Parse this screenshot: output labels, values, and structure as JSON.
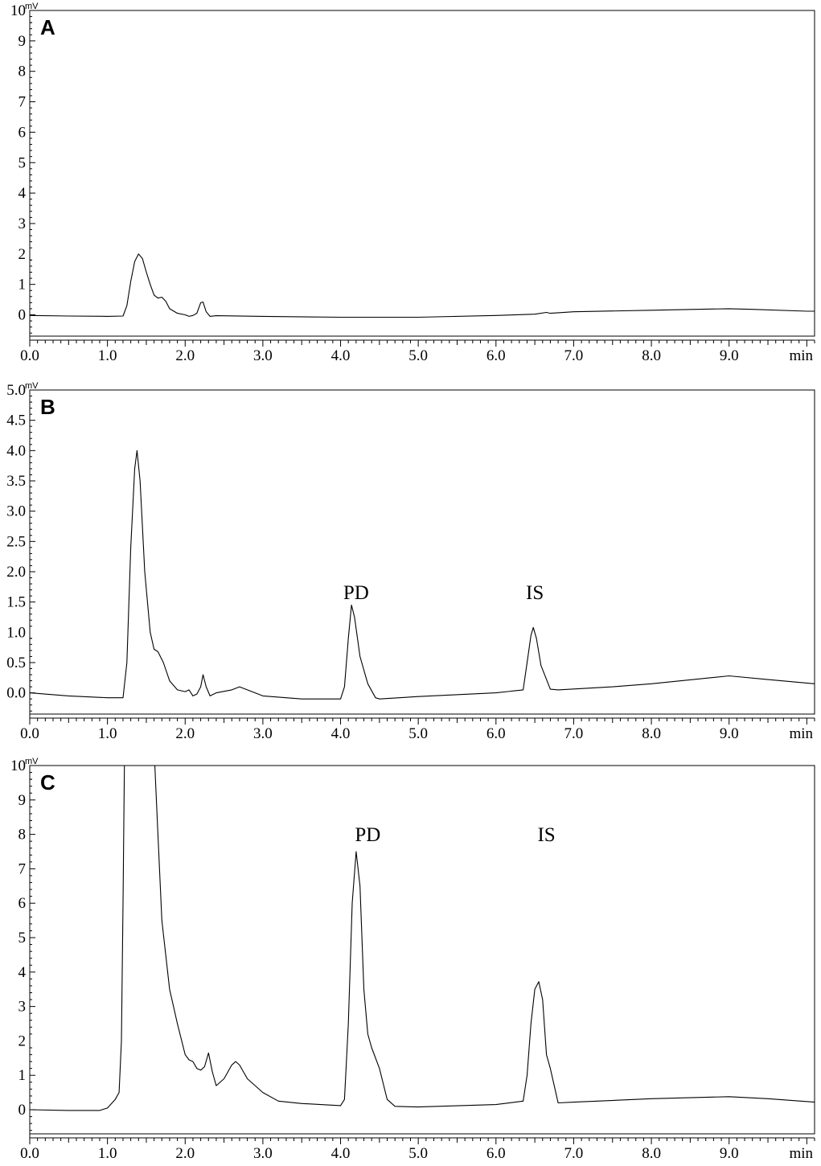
{
  "chart_data": [
    {
      "type": "line",
      "panel_label": "A",
      "y_unit": "mV",
      "x_unit": "min",
      "xlim": [
        0,
        10.1
      ],
      "ylim": [
        -0.7,
        10
      ],
      "y_ticks": [
        0,
        1,
        2,
        3,
        4,
        5,
        6,
        7,
        8,
        9,
        10
      ],
      "y_tick_labels": [
        "0",
        "1",
        "2",
        "3",
        "4",
        "5",
        "6",
        "7",
        "8",
        "9",
        "10"
      ],
      "x_ticks": [
        0,
        1,
        2,
        3,
        4,
        5,
        6,
        7,
        8,
        9
      ],
      "x_tick_labels": [
        "0.0",
        "1.0",
        "2.0",
        "3.0",
        "4.0",
        "5.0",
        "6.0",
        "7.0",
        "8.0",
        "9.0"
      ],
      "annotations": [],
      "x": [
        0,
        0.5,
        1.0,
        1.2,
        1.25,
        1.3,
        1.35,
        1.4,
        1.45,
        1.5,
        1.55,
        1.6,
        1.65,
        1.7,
        1.75,
        1.8,
        1.9,
        2.0,
        2.05,
        2.1,
        2.15,
        2.2,
        2.23,
        2.27,
        2.32,
        2.4,
        3.0,
        4.0,
        5.0,
        6.0,
        6.5,
        6.65,
        6.7,
        7.0,
        8.0,
        9.0,
        9.3,
        10.0,
        10.1
      ],
      "y": [
        -0.02,
        -0.04,
        -0.05,
        -0.04,
        0.3,
        1.1,
        1.75,
        2.0,
        1.85,
        1.4,
        1.0,
        0.65,
        0.55,
        0.58,
        0.45,
        0.2,
        0.05,
        0.0,
        -0.05,
        -0.02,
        0.05,
        0.4,
        0.42,
        0.1,
        -0.05,
        -0.03,
        -0.05,
        -0.08,
        -0.08,
        -0.02,
        0.02,
        0.08,
        0.05,
        0.1,
        0.15,
        0.2,
        0.18,
        0.12,
        0.12
      ]
    },
    {
      "type": "line",
      "panel_label": "B",
      "y_unit": "mV",
      "x_unit": "min",
      "xlim": [
        0,
        10.1
      ],
      "ylim": [
        -0.35,
        5.0
      ],
      "y_ticks": [
        0,
        0.5,
        1.0,
        1.5,
        2.0,
        2.5,
        3.0,
        3.5,
        4.0,
        4.5,
        5.0
      ],
      "y_tick_labels": [
        "0.0",
        "0.5",
        "1.0",
        "1.5",
        "2.0",
        "2.5",
        "3.0",
        "3.5",
        "4.0",
        "4.5",
        "5.0"
      ],
      "x_ticks": [
        0,
        1,
        2,
        3,
        4,
        5,
        6,
        7,
        8,
        9
      ],
      "x_tick_labels": [
        "0.0",
        "1.0",
        "2.0",
        "3.0",
        "4.0",
        "5.0",
        "6.0",
        "7.0",
        "8.0",
        "9.0"
      ],
      "annotations": [
        {
          "text": "PD",
          "x": 4.2,
          "y": 1.55
        },
        {
          "text": "IS",
          "x": 6.5,
          "y": 1.55
        }
      ],
      "x": [
        0,
        0.5,
        1.0,
        1.2,
        1.25,
        1.3,
        1.35,
        1.38,
        1.42,
        1.48,
        1.55,
        1.6,
        1.65,
        1.72,
        1.8,
        1.9,
        2.0,
        2.05,
        2.1,
        2.15,
        2.2,
        2.23,
        2.27,
        2.32,
        2.4,
        2.6,
        2.7,
        2.8,
        3.0,
        3.5,
        4.0,
        4.05,
        4.1,
        4.14,
        4.18,
        4.25,
        4.35,
        4.45,
        4.5,
        5.0,
        6.0,
        6.35,
        6.4,
        6.45,
        6.48,
        6.52,
        6.58,
        6.7,
        6.8,
        7.5,
        8.0,
        9.0,
        9.5,
        10.1
      ],
      "y": [
        0.0,
        -0.05,
        -0.08,
        -0.08,
        0.5,
        2.4,
        3.7,
        4.0,
        3.5,
        2.0,
        1.0,
        0.72,
        0.68,
        0.5,
        0.2,
        0.05,
        0.02,
        0.05,
        -0.05,
        -0.02,
        0.1,
        0.3,
        0.1,
        -0.05,
        0.0,
        0.05,
        0.1,
        0.05,
        -0.05,
        -0.1,
        -0.1,
        0.1,
        0.9,
        1.45,
        1.25,
        0.6,
        0.15,
        -0.08,
        -0.1,
        -0.06,
        0.0,
        0.05,
        0.5,
        0.95,
        1.08,
        0.9,
        0.45,
        0.06,
        0.05,
        0.1,
        0.15,
        0.28,
        0.22,
        0.15
      ]
    },
    {
      "type": "line",
      "panel_label": "C",
      "y_unit": "mV",
      "x_unit": "min",
      "xlim": [
        0,
        10.1
      ],
      "ylim": [
        -0.7,
        10
      ],
      "y_ticks": [
        0,
        1,
        2,
        3,
        4,
        5,
        6,
        7,
        8,
        9,
        10
      ],
      "y_tick_labels": [
        "0",
        "1",
        "2",
        "3",
        "4",
        "5",
        "6",
        "7",
        "8",
        "9",
        "10"
      ],
      "x_ticks": [
        0,
        1,
        2,
        3,
        4,
        5,
        6,
        7,
        8,
        9
      ],
      "x_tick_labels": [
        "0.0",
        "1.0",
        "2.0",
        "3.0",
        "4.0",
        "5.0",
        "6.0",
        "7.0",
        "8.0",
        "9.0"
      ],
      "annotations": [
        {
          "text": "PD",
          "x": 4.35,
          "y": 7.8
        },
        {
          "text": "IS",
          "x": 6.65,
          "y": 7.8
        }
      ],
      "x": [
        0,
        0.5,
        0.9,
        1.0,
        1.1,
        1.15,
        1.18,
        1.2,
        1.22,
        1.25,
        1.6,
        1.65,
        1.7,
        1.75,
        1.8,
        1.9,
        2.0,
        2.05,
        2.1,
        2.15,
        2.2,
        2.25,
        2.3,
        2.35,
        2.4,
        2.5,
        2.6,
        2.65,
        2.7,
        2.8,
        3.0,
        3.2,
        3.5,
        4.0,
        4.05,
        4.1,
        4.15,
        4.2,
        4.25,
        4.3,
        4.35,
        4.4,
        4.5,
        4.6,
        4.7,
        5.0,
        6.0,
        6.35,
        6.4,
        6.45,
        6.5,
        6.55,
        6.6,
        6.65,
        6.7,
        6.8,
        7.0,
        8.0,
        9.0,
        9.5,
        10.1
      ],
      "y": [
        0.0,
        -0.02,
        -0.02,
        0.05,
        0.3,
        0.5,
        2.0,
        6.0,
        10.5,
        10.5,
        10.5,
        8.0,
        5.5,
        4.5,
        3.5,
        2.5,
        1.6,
        1.45,
        1.4,
        1.2,
        1.15,
        1.25,
        1.65,
        1.1,
        0.7,
        0.9,
        1.3,
        1.4,
        1.3,
        0.9,
        0.5,
        0.25,
        0.18,
        0.12,
        0.3,
        2.5,
        6.0,
        7.5,
        6.5,
        3.5,
        2.2,
        1.8,
        1.2,
        0.3,
        0.1,
        0.08,
        0.15,
        0.25,
        1.0,
        2.5,
        3.5,
        3.72,
        3.2,
        1.6,
        1.2,
        0.2,
        0.22,
        0.32,
        0.38,
        0.32,
        0.22
      ]
    }
  ]
}
